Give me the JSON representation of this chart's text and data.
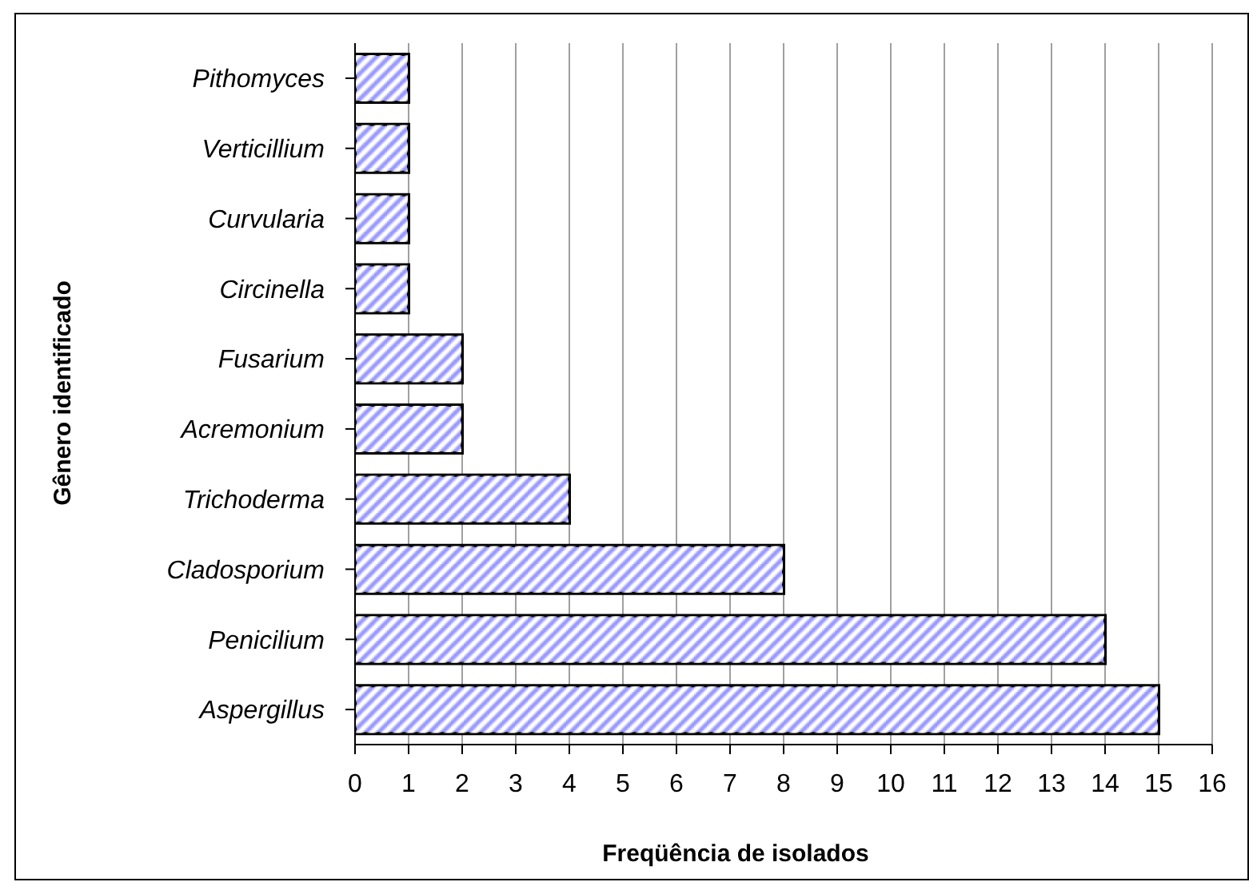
{
  "chart_data": {
    "type": "bar",
    "orientation": "horizontal",
    "xlabel": "Freqüência de isolados",
    "ylabel": "Gênero identificado",
    "categories": [
      "Pithomyces",
      "Verticillium",
      "Curvularia",
      "Circinella",
      "Fusarium",
      "Acremonium",
      "Trichoderma",
      "Cladosporium",
      "Penicilium",
      "Aspergillus"
    ],
    "values": [
      1,
      1,
      1,
      1,
      2,
      2,
      4,
      8,
      14,
      15
    ],
    "color": "#9999ff",
    "xlim": [
      0,
      16
    ],
    "xticks": [
      0,
      1,
      2,
      3,
      4,
      5,
      6,
      7,
      8,
      9,
      10,
      11,
      12,
      13,
      14,
      15,
      16
    ],
    "grid": "x"
  }
}
